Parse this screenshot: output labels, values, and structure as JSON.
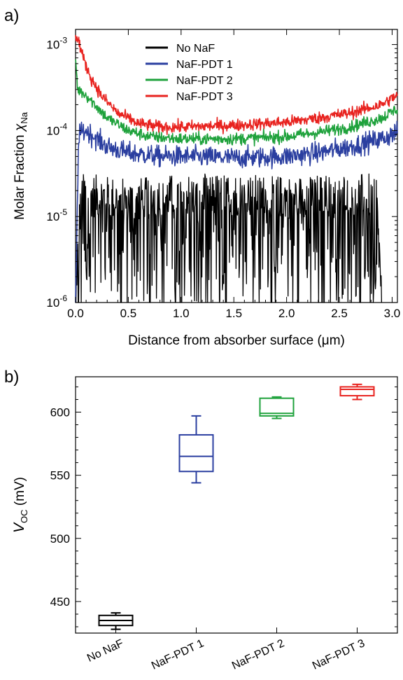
{
  "figure": {
    "panel_a_label": "a)",
    "panel_b_label": "b)"
  },
  "chart_data": [
    {
      "type": "line",
      "panel": "a)",
      "xlabel": "Distance from absorber surface (μm)",
      "ylabel_prefix": "Molar Fraction ",
      "ylabel_symbol": "χ",
      "ylabel_sub": "Na",
      "xlim": [
        0.0,
        3.05
      ],
      "ylim": [
        1e-06,
        0.0015
      ],
      "yscale": "log",
      "grid": false,
      "legend_position": "top-center",
      "x_ticks": [
        0.0,
        0.5,
        1.0,
        1.5,
        2.0,
        2.5,
        3.0
      ],
      "x_tick_labels": [
        "0.0",
        "0.5",
        "1.0",
        "1.5",
        "2.0",
        "2.5",
        "3.0"
      ],
      "y_ticks": [
        {
          "value": 1e-06,
          "base": "10",
          "exp": "-6"
        },
        {
          "value": 1e-05,
          "base": "10",
          "exp": "-5"
        },
        {
          "value": 0.0001,
          "base": "10",
          "exp": "-4"
        },
        {
          "value": 0.001,
          "base": "10",
          "exp": "-3"
        }
      ],
      "series": [
        {
          "name": "No NaF",
          "color": "#000000",
          "x": [
            0.0,
            0.05,
            0.1,
            0.5,
            1.0,
            1.5,
            2.0,
            2.5,
            2.85,
            2.9
          ],
          "y": [
            1e-06,
            1.5e-05,
            1.5e-05,
            1.3e-05,
            1.5e-05,
            1.5e-05,
            1.4e-05,
            1.5e-05,
            1.5e-05,
            1e-06
          ]
        },
        {
          "name": "NaF-PDT 1",
          "color": "#2b3fa0",
          "x": [
            0.0,
            0.03,
            0.1,
            0.2,
            0.3,
            0.5,
            0.8,
            1.0,
            1.5,
            2.0,
            2.3,
            2.6,
            2.9,
            3.05
          ],
          "y": [
            1e-06,
            9e-05,
            0.0001,
            8e-05,
            6.5e-05,
            5.5e-05,
            5e-05,
            5e-05,
            4.8e-05,
            5e-05,
            5.5e-05,
            6.5e-05,
            8e-05,
            9.5e-05
          ]
        },
        {
          "name": "NaF-PDT 2",
          "color": "#1fa23c",
          "x": [
            0.0,
            0.02,
            0.1,
            0.2,
            0.3,
            0.5,
            0.7,
            1.0,
            1.5,
            2.0,
            2.3,
            2.6,
            2.9,
            3.05
          ],
          "y": [
            0.0007,
            0.0003,
            0.00026,
            0.00019,
            0.00014,
            0.0001,
            8.5e-05,
            8e-05,
            8e-05,
            8.5e-05,
            9.5e-05,
            0.00011,
            0.00014,
            0.00018
          ]
        },
        {
          "name": "NaF-PDT 3",
          "color": "#e8231f",
          "x": [
            0.0,
            0.03,
            0.08,
            0.15,
            0.25,
            0.4,
            0.6,
            0.8,
            1.0,
            1.5,
            2.0,
            2.3,
            2.6,
            2.9,
            3.05
          ],
          "y": [
            0.0012,
            0.0011,
            0.00065,
            0.0004,
            0.00025,
            0.00016,
            0.00012,
            0.00011,
            0.00011,
            0.000115,
            0.000125,
            0.00014,
            0.00016,
            0.0002,
            0.00026
          ]
        }
      ]
    },
    {
      "type": "box",
      "panel": "b)",
      "ylabel_symbol": "V",
      "ylabel_sub": "OC",
      "ylabel_unit": " (mV)",
      "ylim": [
        425,
        628
      ],
      "y_ticks": [
        450,
        500,
        550,
        600
      ],
      "grid": false,
      "categories": [
        "No NaF",
        "NaF-PDT 1",
        "NaF-PDT 2",
        "NaF-PDT 3"
      ],
      "boxes": [
        {
          "name": "No NaF",
          "color": "#000000",
          "min": 428,
          "q1": 431,
          "median": 435,
          "q3": 439,
          "max": 441
        },
        {
          "name": "NaF-PDT 1",
          "color": "#2b3fa0",
          "min": 544,
          "q1": 553,
          "median": 565,
          "q3": 582,
          "max": 597
        },
        {
          "name": "NaF-PDT 2",
          "color": "#1fa23c",
          "min": 595,
          "q1": 597,
          "median": 599,
          "q3": 611,
          "max": 612
        },
        {
          "name": "NaF-PDT 3",
          "color": "#e8231f",
          "min": 610,
          "q1": 613,
          "median": 618,
          "q3": 620,
          "max": 622
        }
      ]
    }
  ]
}
